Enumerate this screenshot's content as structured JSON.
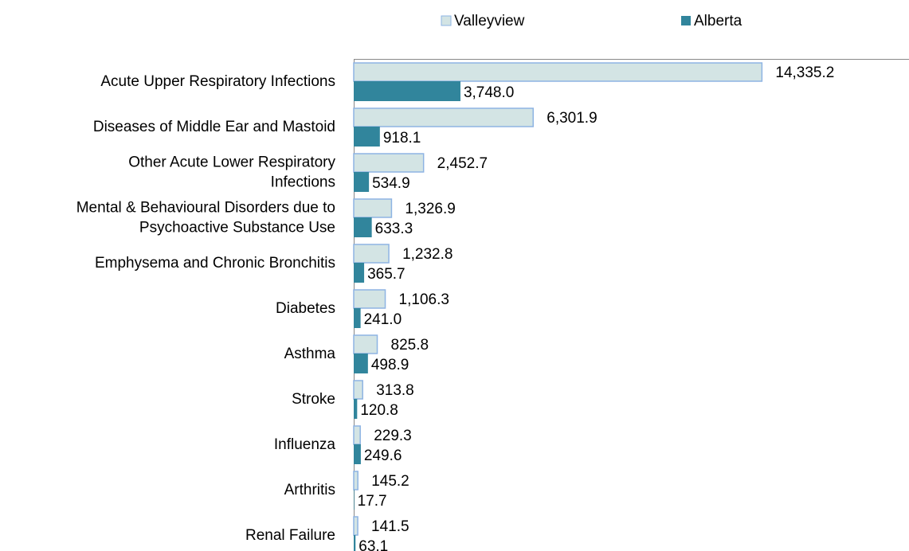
{
  "chart_data": {
    "type": "hbar",
    "categories": [
      "Acute Upper Respiratory Infections",
      "Diseases of Middle Ear and Mastoid",
      "Other Acute Lower Respiratory Infections",
      "Mental & Behavioural Disorders due to Psychoactive Substance Use",
      "Emphysema and Chronic Bronchitis",
      "Diabetes",
      "Asthma",
      "Stroke",
      "Influenza",
      "Arthritis",
      "Renal Failure"
    ],
    "series": [
      {
        "name": "Valleyview",
        "color": "#d3e4e4",
        "stroke": "#8eb4e3",
        "values": [
          14335.2,
          6301.9,
          2452.7,
          1326.9,
          1232.8,
          1106.3,
          825.8,
          313.8,
          229.3,
          145.2,
          141.5
        ],
        "value_labels": [
          "14,335.2",
          "6,301.9",
          "2,452.7",
          "1,326.9",
          "1,232.8",
          "1,106.3",
          "825.8",
          "313.8",
          "229.3",
          "145.2",
          "141.5"
        ]
      },
      {
        "name": "Alberta",
        "color": "#31859c",
        "values": [
          3748.0,
          918.1,
          534.9,
          633.3,
          365.7,
          241.0,
          498.9,
          120.8,
          249.6,
          17.7,
          63.1
        ],
        "value_labels": [
          "3,748.0",
          "918.1",
          "534.9",
          "633.3",
          "365.7",
          "241.0",
          "498.9",
          "120.8",
          "249.6",
          "17.7",
          "63.1"
        ]
      }
    ],
    "xlim": [
      0,
      19500
    ],
    "legend": "top"
  }
}
